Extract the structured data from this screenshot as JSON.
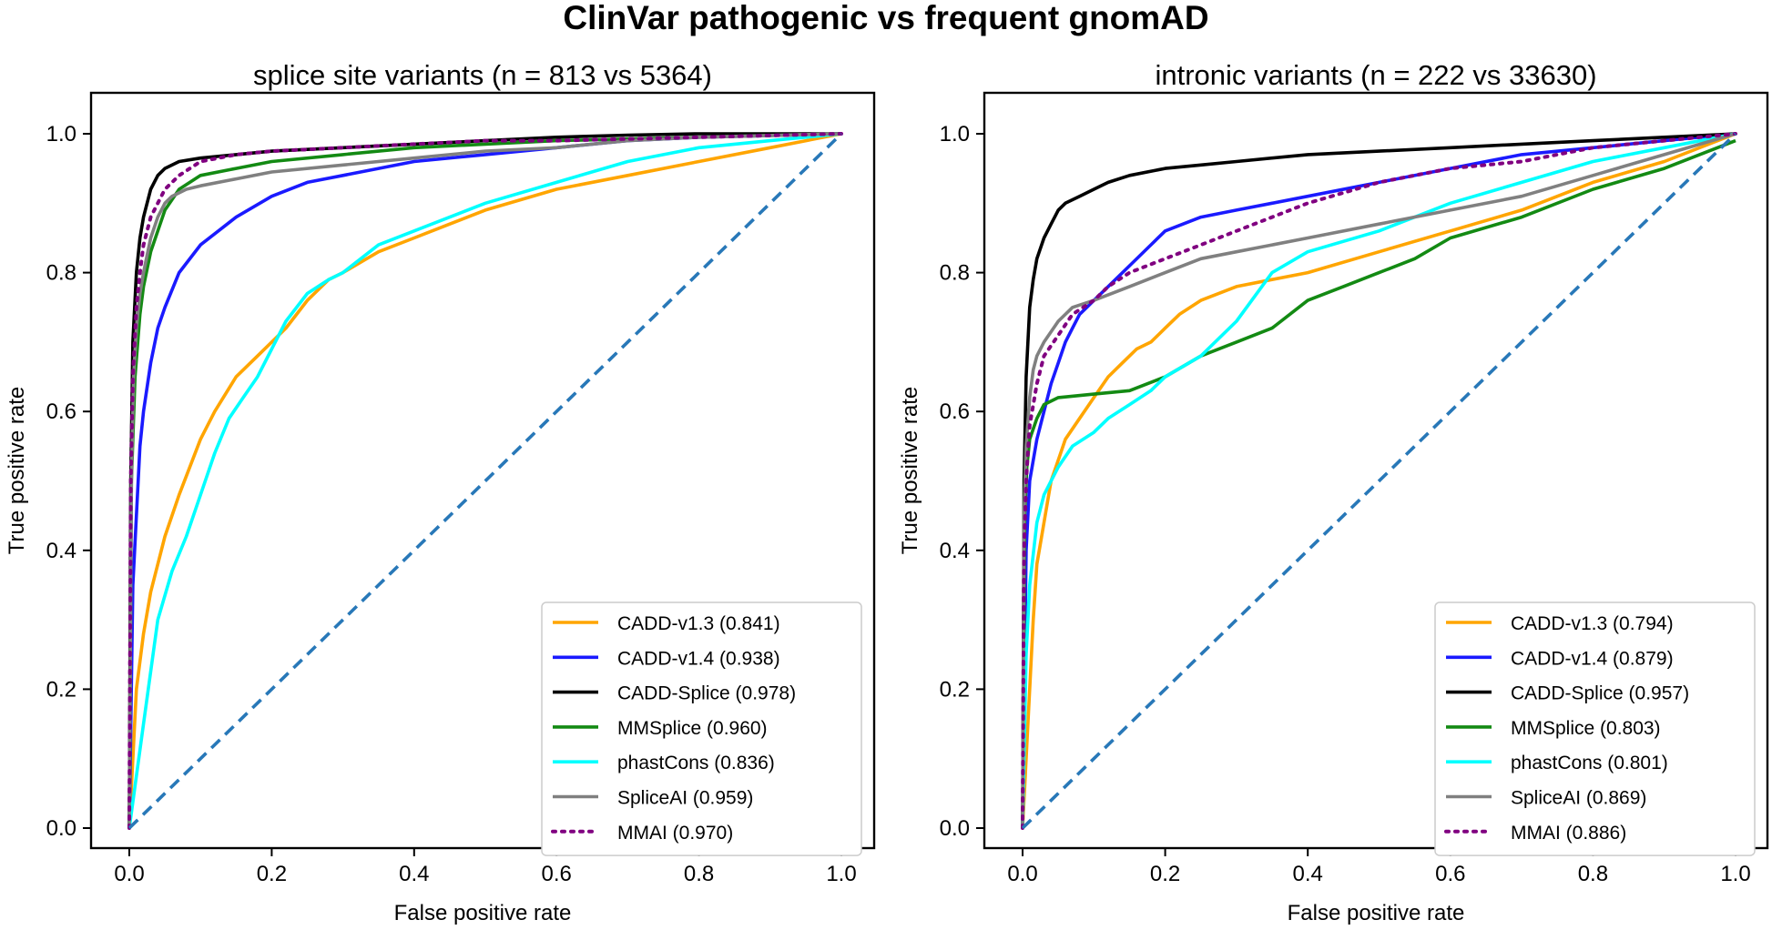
{
  "figure_title": "ClinVar pathogenic vs frequent gnomAD",
  "chart_data": [
    {
      "type": "line",
      "title": "splice site variants (n = 813 vs 5364)",
      "xlabel": "False positive rate",
      "ylabel": "True positive rate",
      "xlim": [
        0.0,
        1.0
      ],
      "ylim": [
        0.0,
        1.0
      ],
      "xticks": [
        "0.0",
        "0.2",
        "0.4",
        "0.6",
        "0.8",
        "1.0"
      ],
      "yticks": [
        "0.0",
        "0.2",
        "0.4",
        "0.6",
        "0.8",
        "1.0"
      ],
      "legend_position": "bottom-right",
      "reference_line": {
        "x": [
          0,
          1
        ],
        "y": [
          0,
          1
        ],
        "color": "#2878b8",
        "style": "dashed"
      },
      "series": [
        {
          "name": "CADD-v1.3",
          "legend": "CADD-v1.3 (0.841)",
          "auc": "0.841",
          "color": "#ffa500",
          "style": "solid",
          "x": [
            0,
            0.005,
            0.01,
            0.02,
            0.03,
            0.05,
            0.07,
            0.1,
            0.12,
            0.15,
            0.18,
            0.2,
            0.22,
            0.25,
            0.28,
            0.3,
            0.35,
            0.4,
            0.45,
            0.5,
            0.6,
            0.7,
            0.8,
            0.9,
            1.0
          ],
          "y": [
            0,
            0.1,
            0.2,
            0.28,
            0.34,
            0.42,
            0.48,
            0.56,
            0.6,
            0.65,
            0.68,
            0.7,
            0.72,
            0.76,
            0.79,
            0.8,
            0.83,
            0.85,
            0.87,
            0.89,
            0.92,
            0.94,
            0.96,
            0.98,
            1.0
          ]
        },
        {
          "name": "CADD-v1.4",
          "legend": "CADD-v1.4 (0.938)",
          "auc": "0.938",
          "color": "#1a1aff",
          "style": "solid",
          "x": [
            0,
            0.005,
            0.01,
            0.015,
            0.02,
            0.03,
            0.04,
            0.05,
            0.07,
            0.1,
            0.15,
            0.2,
            0.25,
            0.3,
            0.4,
            0.5,
            0.6,
            0.7,
            0.8,
            1.0
          ],
          "y": [
            0,
            0.35,
            0.45,
            0.55,
            0.6,
            0.67,
            0.72,
            0.75,
            0.8,
            0.84,
            0.88,
            0.91,
            0.93,
            0.94,
            0.96,
            0.97,
            0.98,
            0.99,
            0.995,
            1.0
          ]
        },
        {
          "name": "CADD-Splice",
          "legend": "CADD-Splice (0.978)",
          "auc": "0.978",
          "color": "#000000",
          "style": "solid",
          "x": [
            0,
            0.002,
            0.005,
            0.01,
            0.015,
            0.02,
            0.03,
            0.04,
            0.05,
            0.07,
            0.1,
            0.15,
            0.2,
            0.3,
            0.4,
            0.5,
            0.6,
            0.7,
            0.8,
            1.0
          ],
          "y": [
            0,
            0.5,
            0.7,
            0.8,
            0.85,
            0.88,
            0.92,
            0.94,
            0.95,
            0.96,
            0.965,
            0.97,
            0.975,
            0.98,
            0.985,
            0.99,
            0.995,
            0.998,
            1.0,
            1.0
          ]
        },
        {
          "name": "MMSplice",
          "legend": "MMSplice (0.960)",
          "auc": "0.960",
          "color": "#138a13",
          "style": "solid",
          "x": [
            0,
            0.003,
            0.008,
            0.015,
            0.02,
            0.03,
            0.04,
            0.05,
            0.07,
            0.1,
            0.15,
            0.2,
            0.3,
            0.4,
            0.5,
            0.6,
            0.8,
            1.0
          ],
          "y": [
            0,
            0.5,
            0.65,
            0.74,
            0.78,
            0.83,
            0.86,
            0.89,
            0.92,
            0.94,
            0.95,
            0.96,
            0.97,
            0.98,
            0.985,
            0.99,
            0.995,
            1.0
          ]
        },
        {
          "name": "phastCons",
          "legend": "phastCons (0.836)",
          "auc": "0.836",
          "color": "#00ffff",
          "style": "solid",
          "x": [
            0,
            0.02,
            0.04,
            0.06,
            0.08,
            0.1,
            0.12,
            0.14,
            0.16,
            0.18,
            0.2,
            0.22,
            0.25,
            0.28,
            0.3,
            0.35,
            0.4,
            0.45,
            0.5,
            0.6,
            0.7,
            0.8,
            0.9,
            1.0
          ],
          "y": [
            0,
            0.15,
            0.3,
            0.37,
            0.42,
            0.48,
            0.54,
            0.59,
            0.62,
            0.65,
            0.69,
            0.73,
            0.77,
            0.79,
            0.8,
            0.84,
            0.86,
            0.88,
            0.9,
            0.93,
            0.96,
            0.98,
            0.99,
            1.0
          ]
        },
        {
          "name": "SpliceAI",
          "legend": "SpliceAI (0.959)",
          "auc": "0.959",
          "color": "#808080",
          "style": "solid",
          "x": [
            0,
            0.003,
            0.006,
            0.01,
            0.015,
            0.02,
            0.03,
            0.04,
            0.05,
            0.06,
            0.08,
            0.1,
            0.15,
            0.2,
            0.3,
            0.4,
            0.5,
            0.6,
            0.7,
            0.8,
            1.0
          ],
          "y": [
            0,
            0.5,
            0.65,
            0.72,
            0.77,
            0.8,
            0.85,
            0.88,
            0.9,
            0.91,
            0.92,
            0.925,
            0.935,
            0.945,
            0.955,
            0.965,
            0.975,
            0.98,
            0.99,
            0.995,
            1.0
          ]
        },
        {
          "name": "MMAI",
          "legend": "MMAI (0.970)",
          "auc": "0.970",
          "color": "#800080",
          "style": "dotted",
          "x": [
            0,
            0.002,
            0.005,
            0.01,
            0.015,
            0.02,
            0.03,
            0.04,
            0.05,
            0.07,
            0.1,
            0.15,
            0.2,
            0.3,
            0.4,
            0.5,
            0.6,
            0.8,
            1.0
          ],
          "y": [
            0,
            0.5,
            0.65,
            0.75,
            0.8,
            0.84,
            0.88,
            0.9,
            0.92,
            0.94,
            0.96,
            0.97,
            0.975,
            0.98,
            0.985,
            0.99,
            0.99,
            0.995,
            1.0
          ]
        }
      ]
    },
    {
      "type": "line",
      "title": "intronic variants (n = 222 vs 33630)",
      "xlabel": "False positive rate",
      "ylabel": "True positive rate",
      "xlim": [
        0.0,
        1.0
      ],
      "ylim": [
        0.0,
        1.0
      ],
      "xticks": [
        "0.0",
        "0.2",
        "0.4",
        "0.6",
        "0.8",
        "1.0"
      ],
      "yticks": [
        "0.0",
        "0.2",
        "0.4",
        "0.6",
        "0.8",
        "1.0"
      ],
      "legend_position": "bottom-right",
      "reference_line": {
        "x": [
          0,
          1
        ],
        "y": [
          0,
          1
        ],
        "color": "#2878b8",
        "style": "dashed"
      },
      "series": [
        {
          "name": "CADD-v1.3",
          "legend": "CADD-v1.3 (0.794)",
          "auc": "0.794",
          "color": "#ffa500",
          "style": "solid",
          "x": [
            0,
            0.005,
            0.01,
            0.015,
            0.02,
            0.03,
            0.04,
            0.05,
            0.06,
            0.08,
            0.1,
            0.12,
            0.14,
            0.16,
            0.18,
            0.2,
            0.22,
            0.25,
            0.3,
            0.35,
            0.4,
            0.5,
            0.6,
            0.7,
            0.8,
            0.9,
            1.0
          ],
          "y": [
            0,
            0.1,
            0.2,
            0.3,
            0.38,
            0.44,
            0.5,
            0.53,
            0.56,
            0.59,
            0.62,
            0.65,
            0.67,
            0.69,
            0.7,
            0.72,
            0.74,
            0.76,
            0.78,
            0.79,
            0.8,
            0.83,
            0.86,
            0.89,
            0.93,
            0.96,
            1.0
          ]
        },
        {
          "name": "CADD-v1.4",
          "legend": "CADD-v1.4 (0.879)",
          "auc": "0.879",
          "color": "#1a1aff",
          "style": "solid",
          "x": [
            0,
            0.005,
            0.01,
            0.02,
            0.03,
            0.04,
            0.05,
            0.06,
            0.07,
            0.08,
            0.09,
            0.1,
            0.12,
            0.15,
            0.18,
            0.2,
            0.25,
            0.3,
            0.35,
            0.4,
            0.5,
            0.6,
            0.7,
            0.8,
            0.9,
            1.0
          ],
          "y": [
            0,
            0.4,
            0.5,
            0.56,
            0.6,
            0.64,
            0.67,
            0.7,
            0.72,
            0.74,
            0.75,
            0.76,
            0.78,
            0.81,
            0.84,
            0.86,
            0.88,
            0.89,
            0.9,
            0.91,
            0.93,
            0.95,
            0.97,
            0.98,
            0.99,
            1.0
          ]
        },
        {
          "name": "CADD-Splice",
          "legend": "CADD-Splice (0.957)",
          "auc": "0.957",
          "color": "#000000",
          "style": "solid",
          "x": [
            0,
            0.002,
            0.005,
            0.01,
            0.015,
            0.02,
            0.03,
            0.04,
            0.05,
            0.06,
            0.08,
            0.1,
            0.12,
            0.15,
            0.2,
            0.25,
            0.3,
            0.4,
            0.5,
            0.6,
            0.7,
            0.8,
            0.9,
            1.0
          ],
          "y": [
            0,
            0.5,
            0.65,
            0.75,
            0.79,
            0.82,
            0.85,
            0.87,
            0.89,
            0.9,
            0.91,
            0.92,
            0.93,
            0.94,
            0.95,
            0.955,
            0.96,
            0.97,
            0.975,
            0.98,
            0.985,
            0.99,
            0.995,
            1.0
          ]
        },
        {
          "name": "MMSplice",
          "legend": "MMSplice (0.803)",
          "auc": "0.803",
          "color": "#138a13",
          "style": "solid",
          "x": [
            0,
            0.003,
            0.006,
            0.01,
            0.02,
            0.03,
            0.05,
            0.1,
            0.15,
            0.2,
            0.25,
            0.3,
            0.35,
            0.4,
            0.45,
            0.5,
            0.55,
            0.6,
            0.7,
            0.8,
            0.9,
            1.0
          ],
          "y": [
            0,
            0.45,
            0.52,
            0.56,
            0.59,
            0.61,
            0.62,
            0.625,
            0.63,
            0.65,
            0.68,
            0.7,
            0.72,
            0.76,
            0.78,
            0.8,
            0.82,
            0.85,
            0.88,
            0.92,
            0.95,
            0.99
          ]
        },
        {
          "name": "phastCons",
          "legend": "phastCons (0.801)",
          "auc": "0.801",
          "color": "#00ffff",
          "style": "solid",
          "x": [
            0,
            0.005,
            0.01,
            0.02,
            0.03,
            0.04,
            0.05,
            0.07,
            0.1,
            0.12,
            0.15,
            0.18,
            0.2,
            0.25,
            0.3,
            0.35,
            0.4,
            0.5,
            0.6,
            0.7,
            0.8,
            0.9,
            1.0
          ],
          "y": [
            0,
            0.25,
            0.35,
            0.44,
            0.48,
            0.5,
            0.52,
            0.55,
            0.57,
            0.59,
            0.61,
            0.63,
            0.65,
            0.68,
            0.73,
            0.8,
            0.83,
            0.86,
            0.9,
            0.93,
            0.96,
            0.98,
            1.0
          ]
        },
        {
          "name": "SpliceAI",
          "legend": "SpliceAI (0.869)",
          "auc": "0.869",
          "color": "#808080",
          "style": "solid",
          "x": [
            0,
            0.002,
            0.005,
            0.01,
            0.015,
            0.02,
            0.03,
            0.05,
            0.07,
            0.1,
            0.15,
            0.2,
            0.25,
            0.3,
            0.4,
            0.5,
            0.6,
            0.7,
            0.8,
            0.9,
            1.0
          ],
          "y": [
            0,
            0.45,
            0.55,
            0.62,
            0.66,
            0.68,
            0.7,
            0.73,
            0.75,
            0.76,
            0.78,
            0.8,
            0.82,
            0.83,
            0.85,
            0.87,
            0.89,
            0.91,
            0.94,
            0.97,
            1.0
          ]
        },
        {
          "name": "MMAI",
          "legend": "MMAI (0.886)",
          "auc": "0.886",
          "color": "#800080",
          "style": "dotted",
          "x": [
            0,
            0.002,
            0.005,
            0.01,
            0.02,
            0.03,
            0.05,
            0.07,
            0.1,
            0.12,
            0.15,
            0.2,
            0.25,
            0.3,
            0.35,
            0.4,
            0.5,
            0.6,
            0.7,
            0.8,
            0.9,
            1.0
          ],
          "y": [
            0,
            0.4,
            0.5,
            0.58,
            0.64,
            0.68,
            0.71,
            0.74,
            0.76,
            0.78,
            0.8,
            0.82,
            0.84,
            0.86,
            0.88,
            0.9,
            0.93,
            0.95,
            0.96,
            0.98,
            0.99,
            1.0
          ]
        }
      ]
    }
  ]
}
